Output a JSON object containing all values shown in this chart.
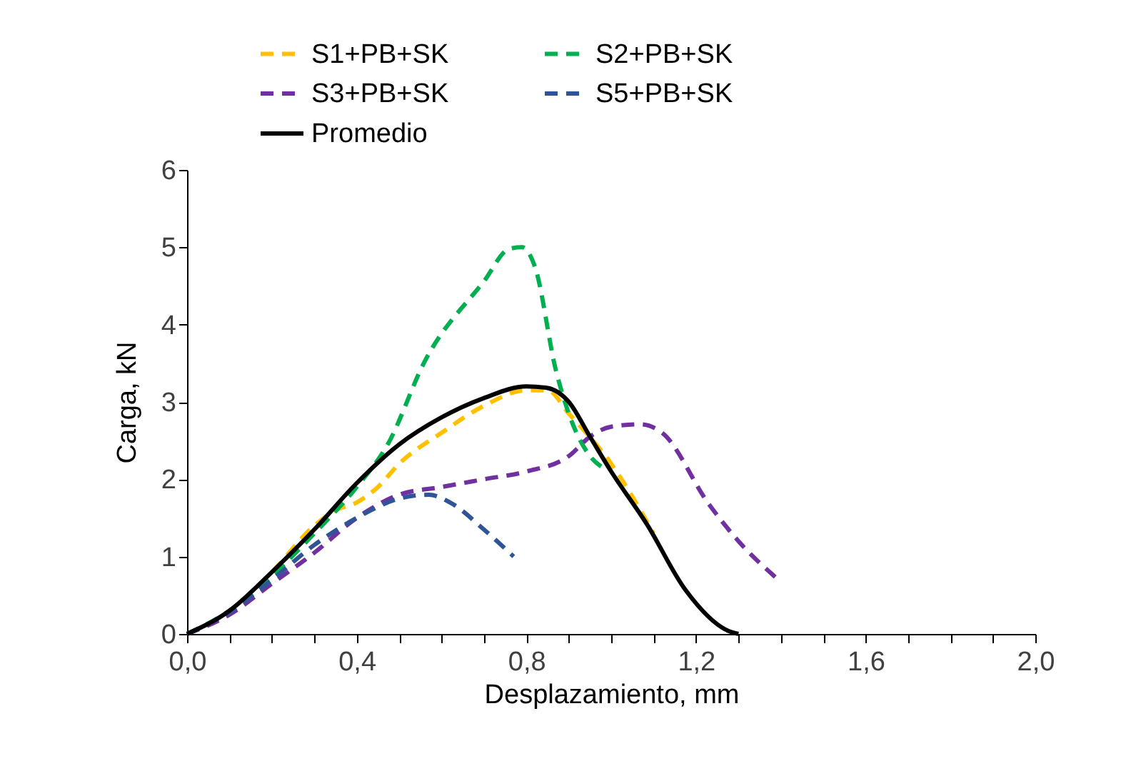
{
  "chart_data": {
    "type": "line",
    "xlabel": "Desplazamiento, mm",
    "ylabel": "Carga, kN",
    "legend": "top",
    "grid": false,
    "marker": "none",
    "xlim": [
      0,
      2
    ],
    "ylim": [
      0,
      6
    ],
    "xticks": [
      {
        "value": 0,
        "label": "0,0"
      },
      {
        "value": 0.1,
        "label": null
      },
      {
        "value": 0.2,
        "label": null
      },
      {
        "value": 0.3,
        "label": null
      },
      {
        "value": 0.4,
        "label": "0,4"
      },
      {
        "value": 0.5,
        "label": null
      },
      {
        "value": 0.6,
        "label": null
      },
      {
        "value": 0.7,
        "label": null
      },
      {
        "value": 0.8,
        "label": "0,8"
      },
      {
        "value": 0.9,
        "label": null
      },
      {
        "value": 1.0,
        "label": null
      },
      {
        "value": 1.1,
        "label": null
      },
      {
        "value": 1.2,
        "label": "1,2"
      },
      {
        "value": 1.3,
        "label": null
      },
      {
        "value": 1.4,
        "label": null
      },
      {
        "value": 1.5,
        "label": null
      },
      {
        "value": 1.6,
        "label": "1,6"
      },
      {
        "value": 1.7,
        "label": null
      },
      {
        "value": 1.8,
        "label": null
      },
      {
        "value": 1.9,
        "label": null
      },
      {
        "value": 2.0,
        "label": "2,0"
      }
    ],
    "yticks": [
      0,
      1,
      2,
      3,
      4,
      5,
      6
    ],
    "series": [
      {
        "name": "S1+PB+SK",
        "color": "#ffc000",
        "line_style": "dashed",
        "x": [
          0,
          0.1,
          0.2,
          0.3,
          0.35,
          0.4,
          0.45,
          0.5,
          0.6,
          0.7,
          0.8,
          0.85,
          0.9,
          1.0,
          1.1
        ],
        "values": [
          0,
          0.3,
          0.8,
          1.4,
          1.6,
          1.7,
          1.9,
          2.2,
          2.6,
          2.95,
          3.15,
          3.15,
          2.85,
          2.2,
          1.3
        ]
      },
      {
        "name": "S2+PB+SK",
        "color": "#00b050",
        "line_style": "dashed",
        "x": [
          0,
          0.1,
          0.2,
          0.3,
          0.4,
          0.475,
          0.56,
          0.7,
          0.76,
          0.79,
          0.82,
          0.87,
          0.9,
          0.95,
          0.98
        ],
        "values": [
          0,
          0.3,
          0.75,
          1.3,
          1.9,
          2.47,
          3.52,
          4.56,
          4.98,
          5.0,
          4.75,
          3.4,
          2.85,
          2.3,
          2.15
        ]
      },
      {
        "name": "S3+PB+SK",
        "color": "#7030a0",
        "line_style": "dashed",
        "x": [
          0,
          0.1,
          0.2,
          0.3,
          0.4,
          0.5,
          0.6,
          0.7,
          0.8,
          0.9,
          0.95,
          1.0,
          1.07,
          1.12,
          1.23,
          1.3,
          1.39
        ],
        "values": [
          0,
          0.25,
          0.65,
          1.05,
          1.5,
          1.8,
          1.9,
          2.0,
          2.1,
          2.3,
          2.55,
          2.68,
          2.71,
          2.6,
          1.68,
          1.2,
          0.72
        ]
      },
      {
        "name": "S5+PB+SK",
        "color": "#2f5597",
        "line_style": "dashed",
        "x": [
          0,
          0.1,
          0.2,
          0.3,
          0.4,
          0.5,
          0.57,
          0.62,
          0.7,
          0.77
        ],
        "values": [
          0,
          0.28,
          0.7,
          1.15,
          1.5,
          1.75,
          1.8,
          1.7,
          1.35,
          1.0
        ]
      },
      {
        "name": "Promedio",
        "color": "#000000",
        "line_style": "solid",
        "x": [
          0,
          0.1,
          0.2,
          0.3,
          0.4,
          0.5,
          0.6,
          0.7,
          0.8,
          0.85,
          0.9,
          0.95,
          1.0,
          1.084,
          1.175,
          1.276,
          1.3
        ],
        "values": [
          0,
          0.3,
          0.8,
          1.35,
          1.95,
          2.45,
          2.8,
          3.05,
          3.2,
          3.18,
          3.0,
          2.55,
          2.1,
          1.42,
          0.57,
          0.04,
          0
        ]
      }
    ]
  }
}
